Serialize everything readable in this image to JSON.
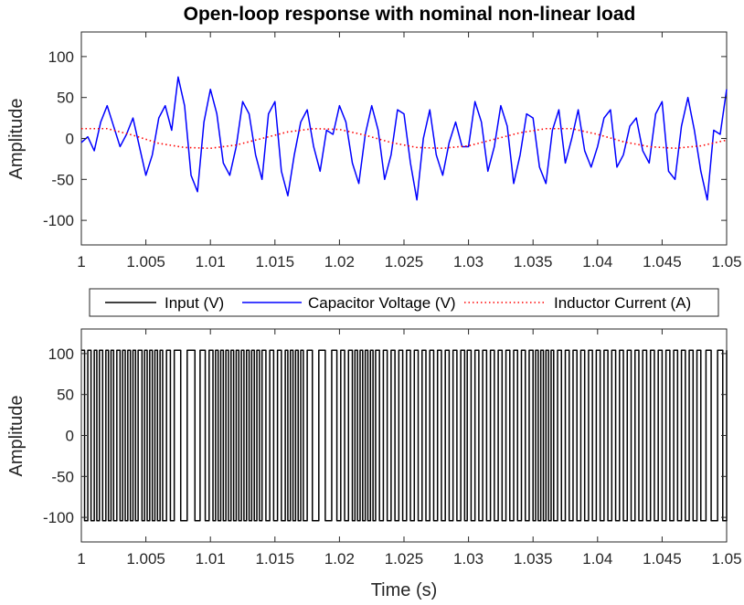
{
  "title": "Open-loop response with nominal non-linear load",
  "legend": {
    "items": [
      {
        "label": "Input (V)",
        "color": "#000000",
        "style": "solid"
      },
      {
        "label": "Capacitor Voltage (V)",
        "color": "#0000ff",
        "style": "solid"
      },
      {
        "label": "Inductor Current (A)",
        "color": "#ff0000",
        "style": "dotted"
      }
    ]
  },
  "chart_data": [
    {
      "type": "line",
      "ylabel": "Amplitude",
      "xlabel": "",
      "xlim": [
        1,
        1.05
      ],
      "ylim": [
        -130,
        130
      ],
      "yticks": [
        -100,
        -50,
        0,
        50,
        100
      ],
      "xtick_labels": [
        "1",
        "1.005",
        "1.01",
        "1.015",
        "1.02",
        "1.025",
        "1.03",
        "1.035",
        "1.04",
        "1.045",
        "1.05"
      ],
      "grid": false,
      "series": [
        {
          "name": "Capacitor Voltage (V)",
          "color": "#0000ff",
          "style": "solid",
          "x": [
            1.0,
            1.0005,
            1.001,
            1.0015,
            1.002,
            1.0025,
            1.003,
            1.0035,
            1.004,
            1.0045,
            1.005,
            1.0055,
            1.006,
            1.0065,
            1.007,
            1.0075,
            1.008,
            1.0085,
            1.009,
            1.0095,
            1.01,
            1.0105,
            1.011,
            1.0115,
            1.012,
            1.0125,
            1.013,
            1.0135,
            1.014,
            1.0145,
            1.015,
            1.0155,
            1.016,
            1.0165,
            1.017,
            1.0175,
            1.018,
            1.0185,
            1.019,
            1.0195,
            1.02,
            1.0205,
            1.021,
            1.0215,
            1.022,
            1.0225,
            1.023,
            1.0235,
            1.024,
            1.0245,
            1.025,
            1.0255,
            1.026,
            1.0265,
            1.027,
            1.0275,
            1.028,
            1.0285,
            1.029,
            1.0295,
            1.03,
            1.0305,
            1.031,
            1.0315,
            1.032,
            1.0325,
            1.033,
            1.0335,
            1.034,
            1.0345,
            1.035,
            1.0355,
            1.036,
            1.0365,
            1.037,
            1.0375,
            1.038,
            1.0385,
            1.039,
            1.0395,
            1.04,
            1.0405,
            1.041,
            1.0415,
            1.042,
            1.0425,
            1.043,
            1.0435,
            1.044,
            1.0445,
            1.045,
            1.0455,
            1.046,
            1.0465,
            1.047,
            1.0475,
            1.048,
            1.0485,
            1.049,
            1.0495,
            1.05
          ],
          "y": [
            -5,
            2,
            -15,
            20,
            40,
            15,
            -10,
            5,
            25,
            -10,
            -45,
            -20,
            25,
            40,
            10,
            75,
            40,
            -45,
            -65,
            20,
            60,
            30,
            -30,
            -45,
            -10,
            45,
            30,
            -20,
            -50,
            30,
            45,
            -40,
            -70,
            -20,
            20,
            35,
            -10,
            -40,
            10,
            5,
            40,
            20,
            -30,
            -55,
            5,
            40,
            10,
            -50,
            -20,
            35,
            30,
            -30,
            -75,
            0,
            35,
            -20,
            -45,
            -5,
            20,
            -10,
            -10,
            45,
            20,
            -40,
            -10,
            40,
            15,
            -55,
            -20,
            30,
            25,
            -35,
            -55,
            10,
            35,
            -30,
            0,
            35,
            -15,
            -35,
            -10,
            25,
            35,
            -35,
            -20,
            15,
            25,
            -15,
            -30,
            30,
            45,
            -40,
            -50,
            15,
            50,
            10,
            -40,
            -75,
            10,
            5,
            60
          ]
        },
        {
          "name": "Inductor Current (A)",
          "color": "#ff0000",
          "style": "dotted",
          "x": [
            1.0,
            1.002,
            1.004,
            1.006,
            1.008,
            1.01,
            1.012,
            1.014,
            1.016,
            1.018,
            1.02,
            1.022,
            1.024,
            1.026,
            1.028,
            1.03,
            1.032,
            1.034,
            1.036,
            1.038,
            1.04,
            1.042,
            1.044,
            1.046,
            1.048,
            1.05
          ],
          "y": [
            12,
            12,
            4,
            -6,
            -11,
            -12,
            -8,
            0,
            8,
            12,
            11,
            4,
            -5,
            -11,
            -12,
            -9,
            -1,
            7,
            12,
            12,
            5,
            -4,
            -10,
            -12,
            -9,
            -2
          ]
        }
      ]
    },
    {
      "type": "line",
      "ylabel": "Amplitude",
      "xlabel": "Time (s)",
      "xlim": [
        1,
        1.05
      ],
      "ylim": [
        -130,
        130
      ],
      "yticks": [
        -100,
        -50,
        0,
        50,
        100
      ],
      "xtick_labels": [
        "1",
        "1.005",
        "1.01",
        "1.015",
        "1.02",
        "1.025",
        "1.03",
        "1.035",
        "1.04",
        "1.045",
        "1.05"
      ],
      "grid": false,
      "series": [
        {
          "name": "Input (V)",
          "color": "#000000",
          "style": "solid",
          "high": 104,
          "low": -104,
          "x": [
            1.0,
            1.00025,
            1.0005,
            1.00075,
            1.001,
            1.0012,
            1.0014,
            1.00165,
            1.0019,
            1.0021,
            1.0023,
            1.0025,
            1.00275,
            1.003,
            1.0032,
            1.0034,
            1.0036,
            1.0038,
            1.004,
            1.0042,
            1.0044,
            1.0047,
            1.0049,
            1.0051,
            1.0053,
            1.0055,
            1.0057,
            1.0059,
            1.0061,
            1.0063,
            1.0066,
            1.0069,
            1.0072,
            1.0077,
            1.0082,
            1.0088,
            1.0092,
            1.0096,
            1.0099,
            1.0102,
            1.0104,
            1.0106,
            1.0108,
            1.011,
            1.0112,
            1.0114,
            1.0116,
            1.0118,
            1.012,
            1.0122,
            1.0124,
            1.0126,
            1.0128,
            1.013,
            1.0132,
            1.0134,
            1.0136,
            1.0138,
            1.014,
            1.0143,
            1.0146,
            1.0149,
            1.0152,
            1.0155,
            1.0158,
            1.016,
            1.0162,
            1.0164,
            1.0166,
            1.0168,
            1.017,
            1.0172,
            1.0175,
            1.0179,
            1.0184,
            1.0189,
            1.0194,
            1.0198,
            1.0201,
            1.0204,
            1.0207,
            1.021,
            1.0212,
            1.0214,
            1.0216,
            1.0218,
            1.022,
            1.0222,
            1.0224,
            1.0226,
            1.0228,
            1.0231,
            1.0234,
            1.0237,
            1.024,
            1.0243,
            1.0246,
            1.0249,
            1.0252,
            1.0255,
            1.0258,
            1.0261,
            1.0264,
            1.0267,
            1.027,
            1.0273,
            1.0276,
            1.0279,
            1.0282,
            1.0285,
            1.0288,
            1.0291,
            1.0294,
            1.0297,
            1.0299,
            1.0302,
            1.0305,
            1.0308,
            1.0311,
            1.0314,
            1.0317,
            1.032,
            1.0323,
            1.0326,
            1.0329,
            1.0332,
            1.0335,
            1.0338,
            1.0341,
            1.0344,
            1.0347,
            1.035,
            1.0352,
            1.0354,
            1.0356,
            1.0358,
            1.036,
            1.0362,
            1.0364,
            1.0366,
            1.0369,
            1.0372,
            1.0375,
            1.0378,
            1.0381,
            1.0384,
            1.0387,
            1.039,
            1.0393,
            1.0396,
            1.0399,
            1.0402,
            1.0405,
            1.0408,
            1.0411,
            1.0414,
            1.0417,
            1.042,
            1.0423,
            1.0426,
            1.0429,
            1.0432,
            1.0435,
            1.0438,
            1.0441,
            1.0444,
            1.0447,
            1.045,
            1.0453,
            1.0456,
            1.0459,
            1.0462,
            1.0465,
            1.0468,
            1.0471,
            1.0474,
            1.0477,
            1.048,
            1.0484,
            1.0488,
            1.0493,
            1.0497,
            1.05
          ]
        }
      ]
    }
  ]
}
